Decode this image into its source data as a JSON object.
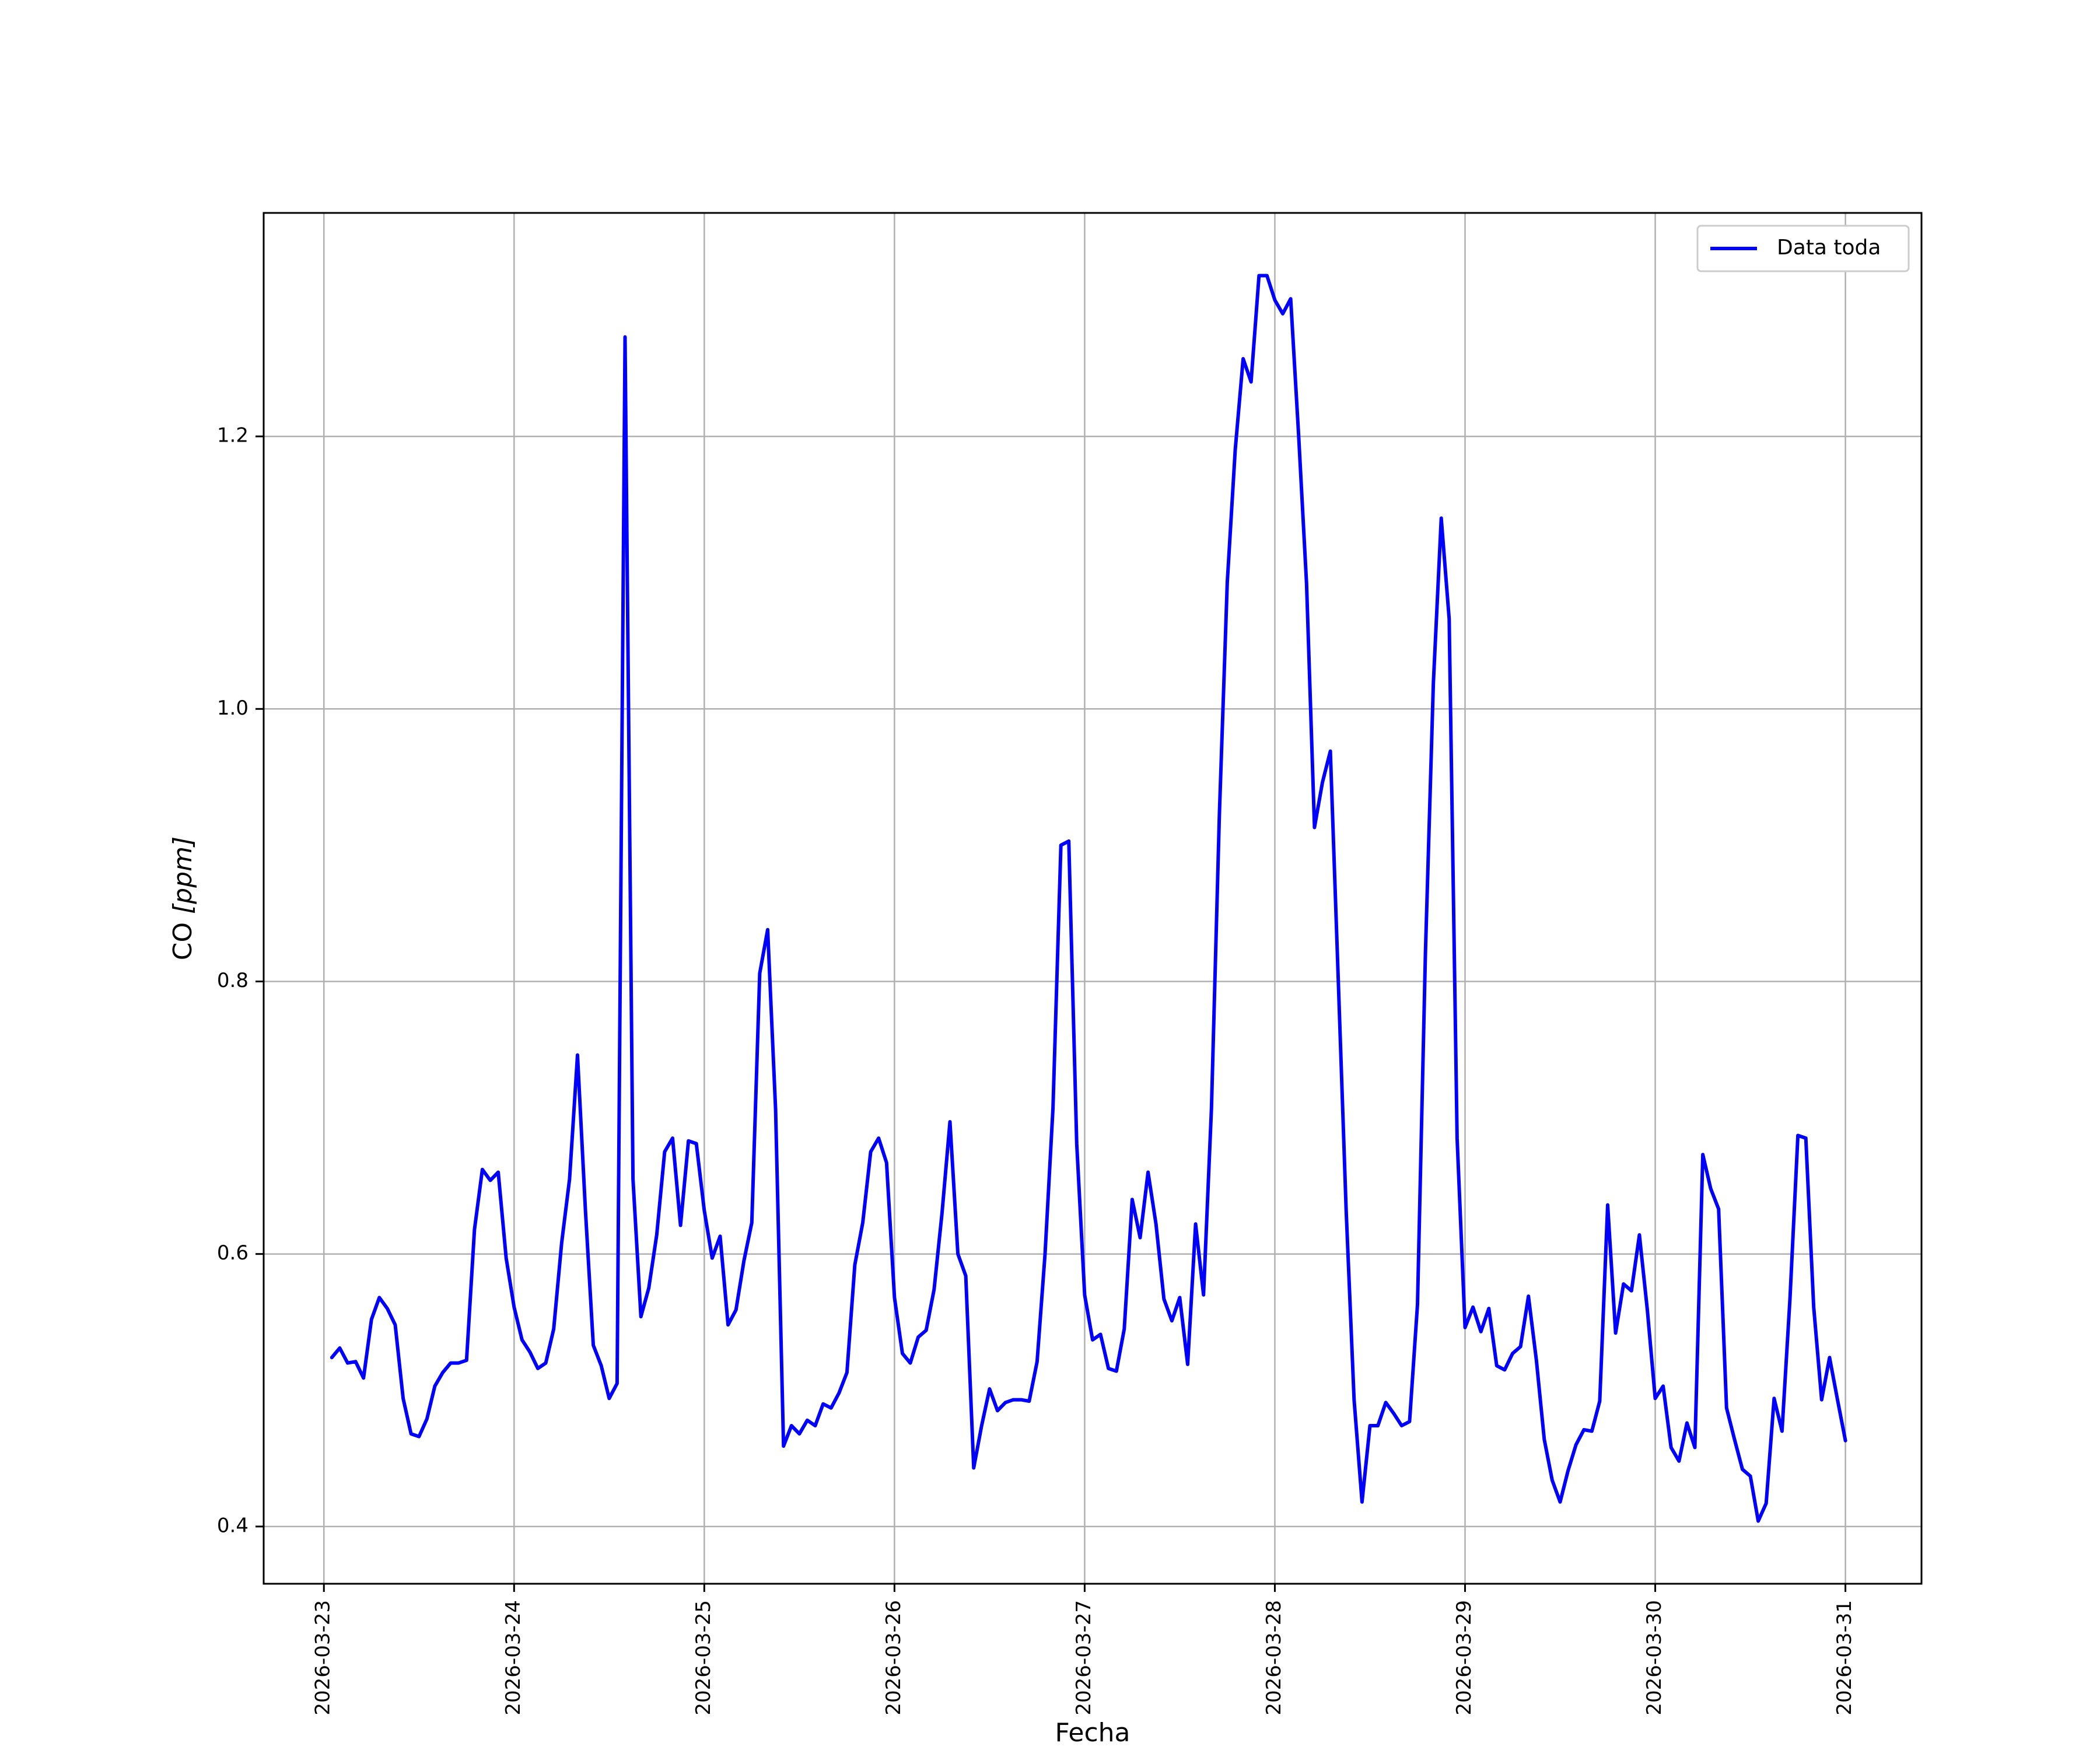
{
  "chart_data": {
    "type": "line",
    "xlabel": "Fecha",
    "ylabel_main": "CO ",
    "ylabel_unit": "[ppm]",
    "x_tick_labels": [
      "2026-03-23",
      "2026-03-24",
      "2026-03-25",
      "2026-03-26",
      "2026-03-27",
      "2026-03-28",
      "2026-03-29",
      "2026-03-30",
      "2026-03-31"
    ],
    "y_ticks": [
      0.4,
      0.6,
      0.8,
      1.0,
      1.2
    ],
    "y_tick_labels": [
      "0.4",
      "0.6",
      "0.8",
      "1.0",
      "1.2"
    ],
    "xlim": [
      "2026-03-22 16:24",
      "2026-03-31 09:36"
    ],
    "ylim": [
      0.358,
      1.364
    ],
    "grid": true,
    "legend_position": "top-right",
    "colors": {
      "series": "#0000ff",
      "grid": "#b0b0b0"
    },
    "series": [
      {
        "name": "Data toda",
        "x": [
          "2026-03-23 01:00",
          "2026-03-23 02:00",
          "2026-03-23 03:00",
          "2026-03-23 04:00",
          "2026-03-23 05:00",
          "2026-03-23 06:00",
          "2026-03-23 07:00",
          "2026-03-23 08:00",
          "2026-03-23 09:00",
          "2026-03-23 10:00",
          "2026-03-23 11:00",
          "2026-03-23 12:00",
          "2026-03-23 13:00",
          "2026-03-23 14:00",
          "2026-03-23 15:00",
          "2026-03-23 16:00",
          "2026-03-23 17:00",
          "2026-03-23 18:00",
          "2026-03-23 19:00",
          "2026-03-23 20:00",
          "2026-03-23 21:00",
          "2026-03-23 22:00",
          "2026-03-23 23:00",
          "2026-03-24 00:00",
          "2026-03-24 01:00",
          "2026-03-24 02:00",
          "2026-03-24 03:00",
          "2026-03-24 04:00",
          "2026-03-24 05:00",
          "2026-03-24 06:00",
          "2026-03-24 07:00",
          "2026-03-24 08:00",
          "2026-03-24 09:00",
          "2026-03-24 10:00",
          "2026-03-24 11:00",
          "2026-03-24 12:00",
          "2026-03-24 13:00",
          "2026-03-24 14:00",
          "2026-03-24 15:00",
          "2026-03-24 16:00",
          "2026-03-24 17:00",
          "2026-03-24 18:00",
          "2026-03-24 19:00",
          "2026-03-24 20:00",
          "2026-03-24 21:00",
          "2026-03-24 22:00",
          "2026-03-24 23:00",
          "2026-03-25 00:00",
          "2026-03-25 01:00",
          "2026-03-25 02:00",
          "2026-03-25 03:00",
          "2026-03-25 04:00",
          "2026-03-25 05:00",
          "2026-03-25 06:00",
          "2026-03-25 07:00",
          "2026-03-25 08:00",
          "2026-03-25 09:00",
          "2026-03-25 10:00",
          "2026-03-25 11:00",
          "2026-03-25 12:00",
          "2026-03-25 13:00",
          "2026-03-25 14:00",
          "2026-03-25 15:00",
          "2026-03-25 16:00",
          "2026-03-25 17:00",
          "2026-03-25 18:00",
          "2026-03-25 19:00",
          "2026-03-25 20:00",
          "2026-03-25 21:00",
          "2026-03-25 22:00",
          "2026-03-25 23:00",
          "2026-03-26 00:00",
          "2026-03-26 01:00",
          "2026-03-26 02:00",
          "2026-03-26 03:00",
          "2026-03-26 04:00",
          "2026-03-26 05:00",
          "2026-03-26 06:00",
          "2026-03-26 07:00",
          "2026-03-26 08:00",
          "2026-03-26 09:00",
          "2026-03-26 10:00",
          "2026-03-26 11:00",
          "2026-03-26 12:00",
          "2026-03-26 13:00",
          "2026-03-26 14:00",
          "2026-03-26 15:00",
          "2026-03-26 16:00",
          "2026-03-26 17:00",
          "2026-03-26 18:00",
          "2026-03-26 19:00",
          "2026-03-26 20:00",
          "2026-03-26 21:00",
          "2026-03-26 22:00",
          "2026-03-26 23:00",
          "2026-03-27 00:00",
          "2026-03-27 01:00",
          "2026-03-27 02:00",
          "2026-03-27 03:00",
          "2026-03-27 04:00",
          "2026-03-27 05:00",
          "2026-03-27 06:00",
          "2026-03-27 07:00",
          "2026-03-27 08:00",
          "2026-03-27 09:00",
          "2026-03-27 10:00",
          "2026-03-27 11:00",
          "2026-03-27 12:00",
          "2026-03-27 13:00",
          "2026-03-27 14:00",
          "2026-03-27 15:00",
          "2026-03-27 16:00",
          "2026-03-27 17:00",
          "2026-03-27 18:00",
          "2026-03-27 19:00",
          "2026-03-27 20:00",
          "2026-03-27 21:00",
          "2026-03-27 22:00",
          "2026-03-27 23:00",
          "2026-03-28 00:00",
          "2026-03-28 01:00",
          "2026-03-28 02:00",
          "2026-03-28 03:00",
          "2026-03-28 04:00",
          "2026-03-28 05:00",
          "2026-03-28 06:00",
          "2026-03-28 07:00",
          "2026-03-28 08:00",
          "2026-03-28 09:00",
          "2026-03-28 10:00",
          "2026-03-28 11:00",
          "2026-03-28 12:00",
          "2026-03-28 13:00",
          "2026-03-28 14:00",
          "2026-03-28 15:00",
          "2026-03-28 16:00",
          "2026-03-28 17:00",
          "2026-03-28 18:00",
          "2026-03-28 19:00",
          "2026-03-28 20:00",
          "2026-03-28 21:00",
          "2026-03-28 22:00",
          "2026-03-28 23:00",
          "2026-03-29 00:00",
          "2026-03-29 01:00",
          "2026-03-29 02:00",
          "2026-03-29 03:00",
          "2026-03-29 04:00",
          "2026-03-29 05:00",
          "2026-03-29 06:00",
          "2026-03-29 07:00",
          "2026-03-29 08:00",
          "2026-03-29 09:00",
          "2026-03-29 10:00",
          "2026-03-29 11:00",
          "2026-03-29 12:00",
          "2026-03-29 13:00",
          "2026-03-29 14:00",
          "2026-03-29 15:00",
          "2026-03-29 16:00",
          "2026-03-29 17:00",
          "2026-03-29 18:00",
          "2026-03-29 19:00",
          "2026-03-29 20:00",
          "2026-03-29 21:00",
          "2026-03-29 22:00",
          "2026-03-29 23:00",
          "2026-03-30 00:00",
          "2026-03-30 01:00",
          "2026-03-30 02:00",
          "2026-03-30 03:00",
          "2026-03-30 04:00",
          "2026-03-30 05:00",
          "2026-03-30 06:00",
          "2026-03-30 07:00",
          "2026-03-30 08:00",
          "2026-03-30 09:00",
          "2026-03-30 10:00",
          "2026-03-30 11:00",
          "2026-03-30 12:00",
          "2026-03-30 13:00",
          "2026-03-30 14:00",
          "2026-03-30 15:00",
          "2026-03-30 16:00",
          "2026-03-30 17:00",
          "2026-03-30 18:00",
          "2026-03-30 19:00",
          "2026-03-30 20:00",
          "2026-03-30 21:00",
          "2026-03-30 22:00",
          "2026-03-30 23:00",
          "2026-03-31 00:00"
        ],
        "y": [
          0.524,
          0.531,
          0.52,
          0.521,
          0.509,
          0.552,
          0.568,
          0.56,
          0.548,
          0.494,
          0.468,
          0.466,
          0.479,
          0.503,
          0.513,
          0.52,
          0.52,
          0.522,
          0.618,
          0.662,
          0.654,
          0.66,
          0.597,
          0.561,
          0.537,
          0.528,
          0.516,
          0.52,
          0.545,
          0.608,
          0.655,
          0.746,
          0.632,
          0.533,
          0.518,
          0.494,
          0.505,
          1.273,
          0.655,
          0.554,
          0.575,
          0.614,
          0.675,
          0.685,
          0.621,
          0.683,
          0.681,
          0.632,
          0.597,
          0.613,
          0.548,
          0.559,
          0.595,
          0.623,
          0.806,
          0.838,
          0.706,
          0.459,
          0.474,
          0.468,
          0.478,
          0.474,
          0.49,
          0.487,
          0.498,
          0.513,
          0.592,
          0.623,
          0.675,
          0.685,
          0.667,
          0.568,
          0.527,
          0.52,
          0.539,
          0.544,
          0.574,
          0.63,
          0.697,
          0.6,
          0.584,
          0.443,
          0.474,
          0.501,
          0.485,
          0.491,
          0.493,
          0.493,
          0.492,
          0.521,
          0.6,
          0.707,
          0.9,
          0.903,
          0.681,
          0.57,
          0.537,
          0.541,
          0.516,
          0.514,
          0.545,
          0.64,
          0.612,
          0.66,
          0.622,
          0.567,
          0.551,
          0.568,
          0.519,
          0.622,
          0.57,
          0.707,
          0.923,
          1.093,
          1.19,
          1.257,
          1.24,
          1.318,
          1.318,
          1.3,
          1.29,
          1.301,
          1.201,
          1.092,
          0.913,
          0.946,
          0.969,
          0.802,
          0.632,
          0.493,
          0.418,
          0.474,
          0.474,
          0.491,
          0.483,
          0.474,
          0.477,
          0.563,
          0.821,
          1.019,
          1.14,
          1.066,
          0.685,
          0.546,
          0.561,
          0.543,
          0.56,
          0.518,
          0.515,
          0.527,
          0.532,
          0.569,
          0.522,
          0.464,
          0.434,
          0.418,
          0.441,
          0.46,
          0.471,
          0.47,
          0.492,
          0.636,
          0.542,
          0.578,
          0.573,
          0.614,
          0.559,
          0.494,
          0.503,
          0.458,
          0.448,
          0.476,
          0.458,
          0.673,
          0.648,
          0.633,
          0.487,
          0.464,
          0.442,
          0.437,
          0.404,
          0.417,
          0.494,
          0.47,
          0.567,
          0.687,
          0.685,
          0.561,
          0.493,
          0.524,
          0.493,
          0.463
        ]
      }
    ]
  }
}
